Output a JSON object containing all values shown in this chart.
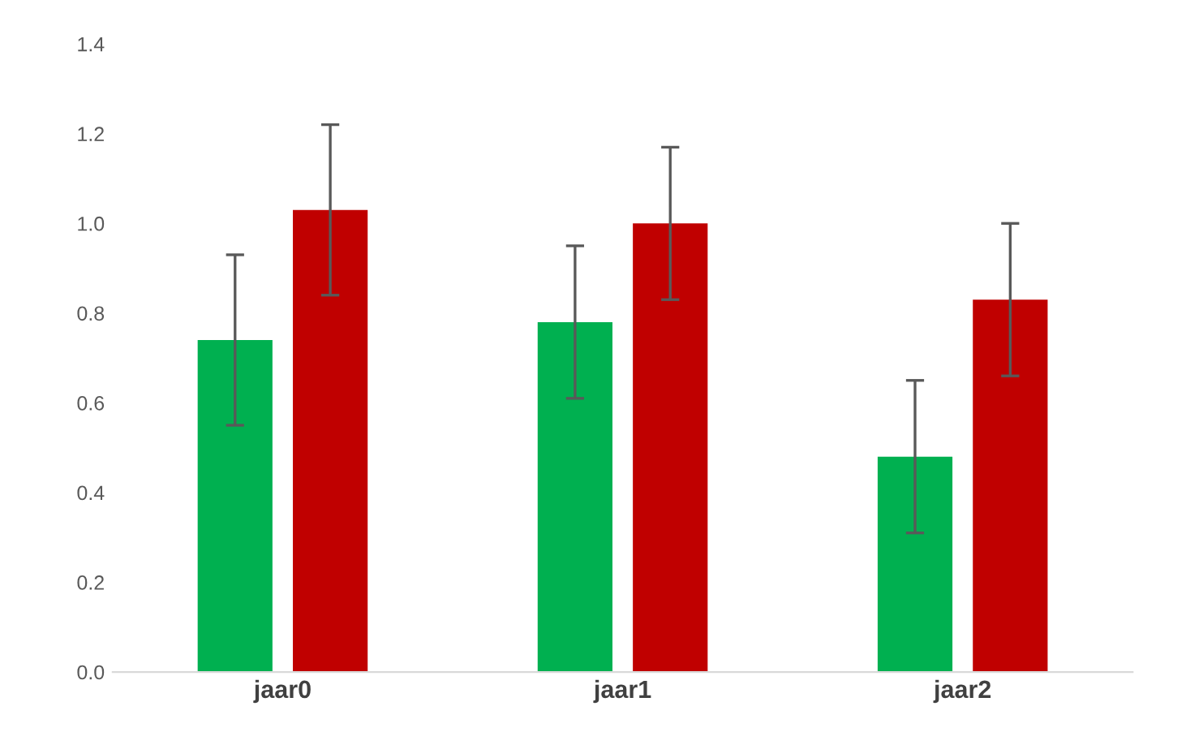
{
  "chart_data": {
    "type": "bar",
    "categories": [
      "jaar0",
      "jaar1",
      "jaar2"
    ],
    "series": [
      {
        "color": "#00b050",
        "values": [
          0.74,
          0.78,
          0.48
        ],
        "errors": [
          0.19,
          0.17,
          0.17
        ]
      },
      {
        "color": "#c00000",
        "values": [
          1.03,
          1.0,
          0.83
        ],
        "errors": [
          0.19,
          0.17,
          0.17
        ]
      }
    ],
    "ylim": [
      0,
      1.4
    ],
    "yticks": [
      {
        "value": 0,
        "label": "0.0"
      },
      {
        "value": 0.2,
        "label": "0.2"
      },
      {
        "value": 0.4,
        "label": "0.4"
      },
      {
        "value": 0.6,
        "label": "0.6"
      },
      {
        "value": 0.8,
        "label": "0.8"
      },
      {
        "value": 1.0,
        "label": "1.0"
      },
      {
        "value": 1.2,
        "label": "1.2"
      },
      {
        "value": 1.4,
        "label": "1.4"
      }
    ],
    "grid": false,
    "legend": false
  }
}
